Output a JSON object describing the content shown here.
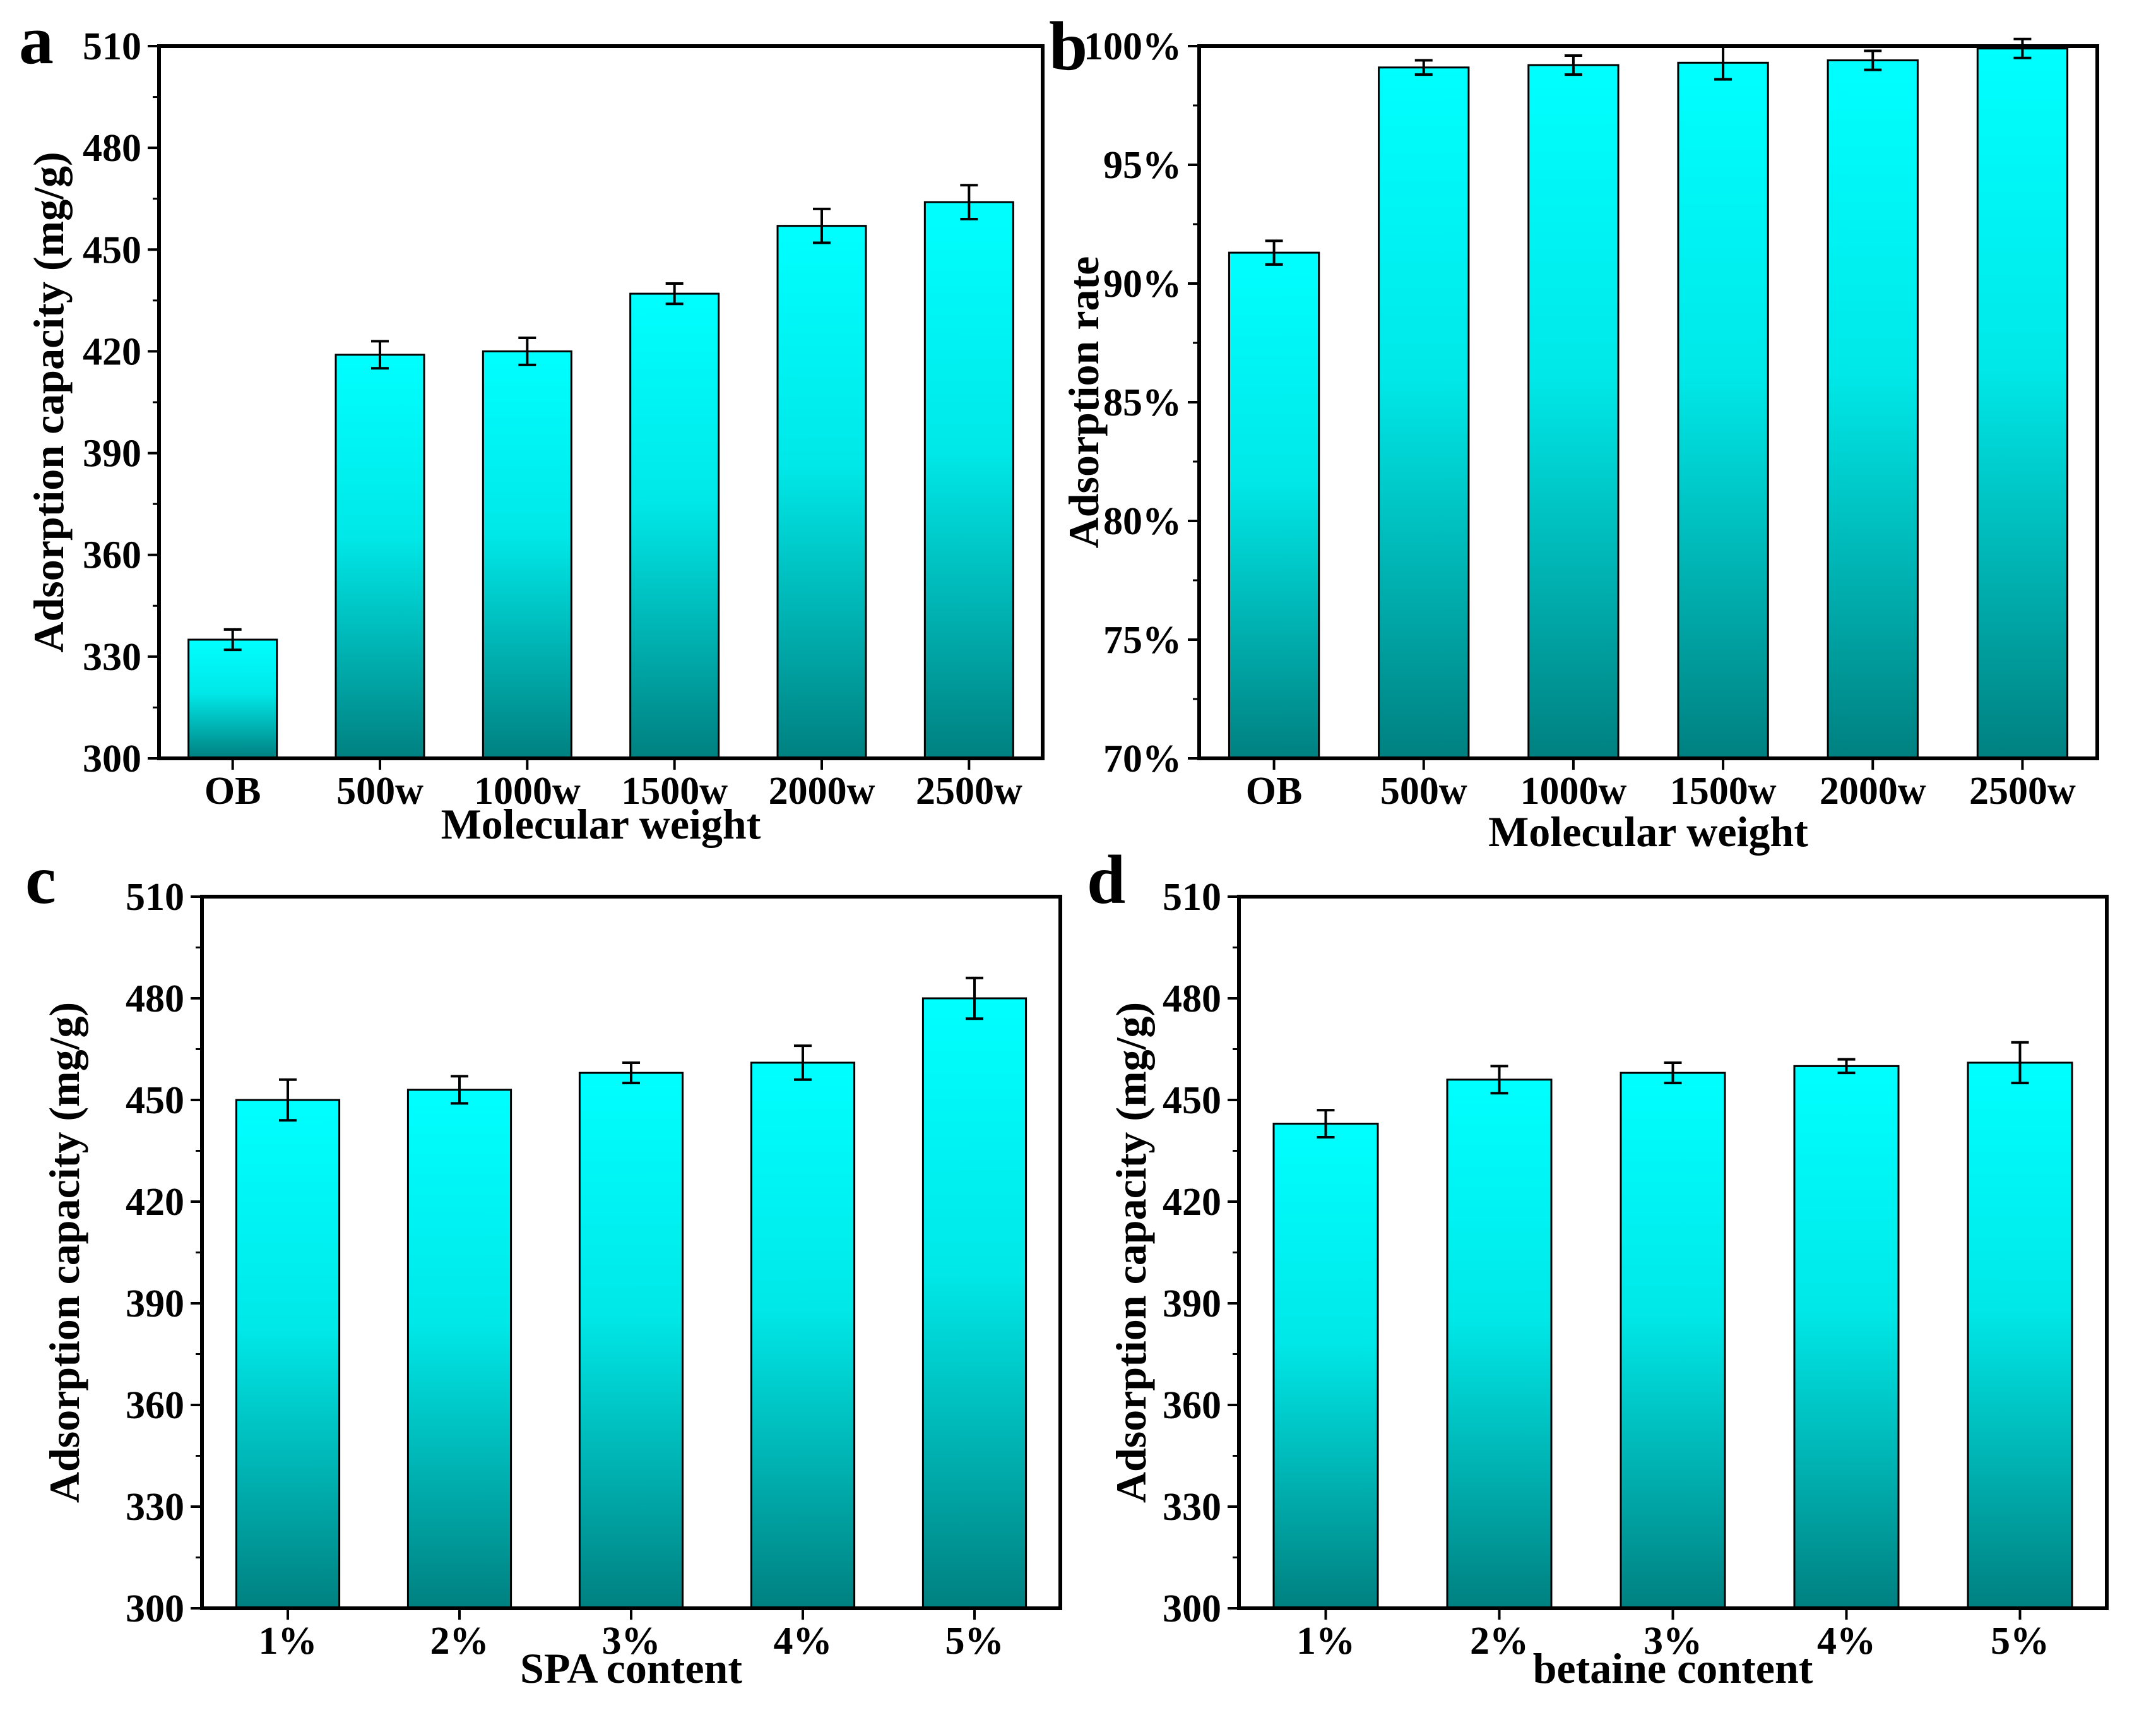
{
  "colors": {
    "bar_top": "#00ffff",
    "bar_bottom": "#008080",
    "axis": "#000000"
  },
  "chart_data": [
    {
      "panel": "a",
      "type": "bar",
      "xlabel": "Molecular weight",
      "ylabel": "Adsorption capacity (mg/g)",
      "categories": [
        "OB",
        "500w",
        "1000w",
        "1500w",
        "2000w",
        "2500w"
      ],
      "values": [
        335,
        419,
        420,
        437,
        457,
        464
      ],
      "errors": [
        3,
        4,
        4,
        3,
        5,
        5
      ],
      "ylim": [
        300,
        510
      ],
      "yticks": [
        300,
        330,
        360,
        390,
        420,
        450,
        480,
        510
      ],
      "ytick_labels": [
        "300",
        "330",
        "360",
        "390",
        "420",
        "450",
        "480",
        "510"
      ]
    },
    {
      "panel": "b",
      "type": "bar",
      "xlabel": "Molecular weight",
      "ylabel": "Adsorption rate",
      "categories": [
        "OB",
        "500w",
        "1000w",
        "1500w",
        "2000w",
        "2500w"
      ],
      "values": [
        91.3,
        99.1,
        99.2,
        99.3,
        99.4,
        99.9
      ],
      "errors": [
        0.5,
        0.3,
        0.4,
        0.7,
        0.4,
        0.4
      ],
      "ylim": [
        70,
        100
      ],
      "yticks": [
        70,
        75,
        80,
        85,
        90,
        95,
        100
      ],
      "ytick_labels": [
        "70%",
        "75%",
        "80%",
        "85%",
        "90%",
        "95%",
        "100%"
      ]
    },
    {
      "panel": "c",
      "type": "bar",
      "xlabel": "SPA content",
      "ylabel": "Adsorption capacity (mg/g)",
      "categories": [
        "1%",
        "2%",
        "3%",
        "4%",
        "5%"
      ],
      "values": [
        450,
        453,
        458,
        461,
        480
      ],
      "errors": [
        6,
        4,
        3,
        5,
        6
      ],
      "ylim": [
        300,
        510
      ],
      "yticks": [
        300,
        330,
        360,
        390,
        420,
        450,
        480,
        510
      ],
      "ytick_labels": [
        "300",
        "330",
        "360",
        "390",
        "420",
        "450",
        "480",
        "510"
      ]
    },
    {
      "panel": "d",
      "type": "bar",
      "xlabel": "betaine content",
      "ylabel": "Adsorption capacity (mg/g)",
      "categories": [
        "1%",
        "2%",
        "3%",
        "4%",
        "5%"
      ],
      "values": [
        443,
        456,
        458,
        460,
        461
      ],
      "errors": [
        4,
        4,
        3,
        2,
        6
      ],
      "ylim": [
        300,
        510
      ],
      "yticks": [
        300,
        330,
        360,
        390,
        420,
        450,
        480,
        510
      ],
      "ytick_labels": [
        "300",
        "330",
        "360",
        "390",
        "420",
        "450",
        "480",
        "510"
      ]
    }
  ]
}
